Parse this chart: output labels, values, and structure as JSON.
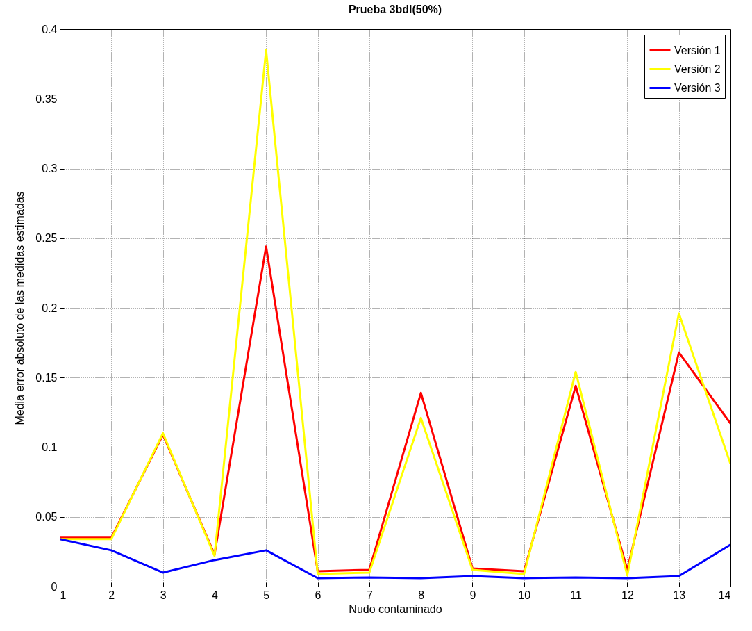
{
  "chart_data": {
    "type": "line",
    "title": "Prueba 3bdl(50%)",
    "xlabel": "Nudo contaminado",
    "ylabel": "Media error absoluto de las medidas estimadas",
    "x": [
      1,
      2,
      3,
      4,
      5,
      6,
      7,
      8,
      9,
      10,
      11,
      12,
      13,
      14
    ],
    "series": [
      {
        "name": "Versión 1",
        "color": "#ff0000",
        "values": [
          0.035,
          0.035,
          0.109,
          0.023,
          0.244,
          0.011,
          0.012,
          0.139,
          0.013,
          0.011,
          0.144,
          0.012,
          0.168,
          0.117
        ]
      },
      {
        "name": "Versión 2",
        "color": "#ffff00",
        "values": [
          0.034,
          0.034,
          0.11,
          0.022,
          0.385,
          0.009,
          0.01,
          0.121,
          0.012,
          0.009,
          0.154,
          0.008,
          0.196,
          0.088
        ]
      },
      {
        "name": "Versión 3",
        "color": "#0000ff",
        "values": [
          0.034,
          0.026,
          0.01,
          0.019,
          0.026,
          0.006,
          0.0065,
          0.006,
          0.0075,
          0.006,
          0.0065,
          0.006,
          0.0075,
          0.03
        ]
      }
    ],
    "xlim": [
      1,
      14
    ],
    "xticks": [
      1,
      2,
      3,
      4,
      5,
      6,
      7,
      8,
      9,
      10,
      11,
      12,
      13,
      14
    ],
    "ylim": [
      0,
      0.4
    ],
    "yticks": [
      0,
      0.05,
      0.1,
      0.15,
      0.2,
      0.25,
      0.3,
      0.35,
      0.4
    ],
    "grid": true,
    "legend": "top right",
    "marker": "none",
    "line_style": "solid"
  }
}
